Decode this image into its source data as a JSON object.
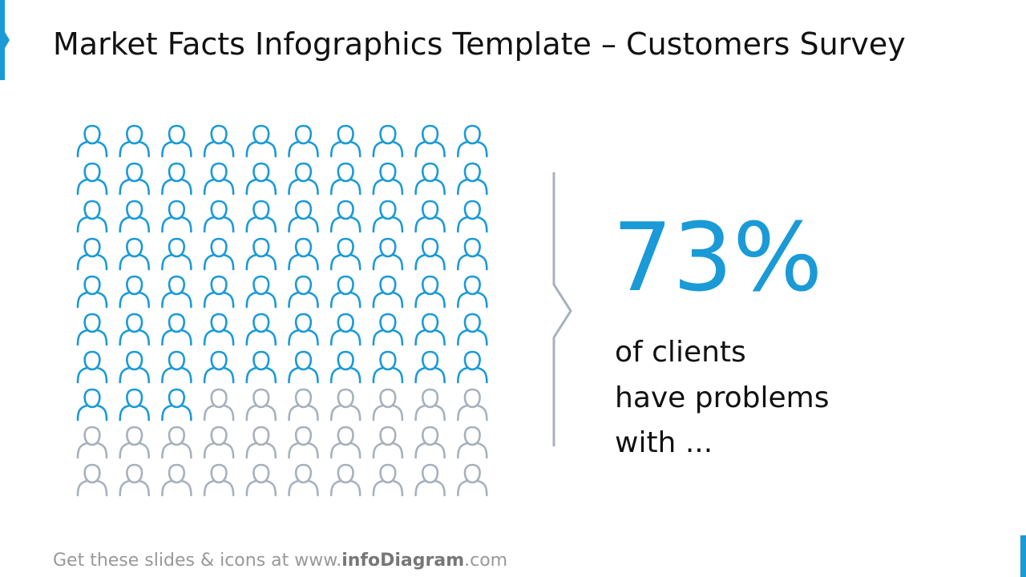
{
  "title": "Market Facts Infographics Template – Customers Survey",
  "chart_data": {
    "type": "pictogram",
    "values": [
      73
    ],
    "value_labels": [
      "73%"
    ],
    "color": "#1a9ad6",
    "rest_color": "#a7b1bd",
    "description": [
      "of clients",
      "have problems",
      "with ..."
    ]
  },
  "footer": {
    "parts": [
      "Get these slides & icons at www.",
      "infoDiagram",
      ".com"
    ]
  }
}
